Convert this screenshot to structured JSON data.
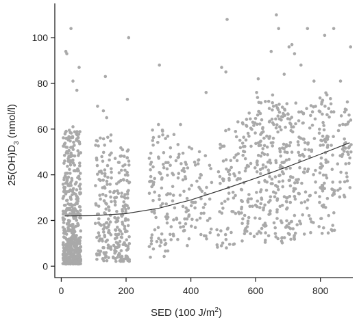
{
  "chart_data": {
    "type": "scatter",
    "title": "",
    "xlabel": {
      "main": "SED (100 J/m",
      "sup": "2",
      "tail": ")"
    },
    "ylabel": {
      "main": "25(OH)D",
      "sub": "3",
      "tail": " (nmol/l)"
    },
    "xlim": [
      -20,
      900
    ],
    "ylim": [
      -5,
      115
    ],
    "x_ticks": [
      0,
      200,
      400,
      600,
      800
    ],
    "y_ticks": [
      0,
      20,
      40,
      60,
      80,
      100
    ],
    "x_tick_labels": [
      "0",
      "200",
      "400",
      "600",
      "800"
    ],
    "y_tick_labels": [
      "0",
      "20",
      "40",
      "60",
      "80",
      "100"
    ],
    "grid": false,
    "legend": "none",
    "colors": {
      "points": "#a9a9a9",
      "fit_line": "#333333",
      "axis": "#222222"
    },
    "fit_curve": {
      "x": [
        10,
        100,
        200,
        300,
        400,
        500,
        600,
        700,
        800,
        890
      ],
      "y": [
        22,
        22.1,
        23,
        25.3,
        29,
        33.6,
        38.5,
        43.6,
        49,
        54
      ]
    },
    "outliers": [
      {
        "x": 14,
        "y": 94
      },
      {
        "x": 17,
        "y": 93
      },
      {
        "x": 30,
        "y": 104
      },
      {
        "x": 36,
        "y": 81
      },
      {
        "x": 48,
        "y": 77
      },
      {
        "x": 55,
        "y": 87
      },
      {
        "x": 136,
        "y": 83
      },
      {
        "x": 208,
        "y": 100
      },
      {
        "x": 204,
        "y": 73
      },
      {
        "x": 303,
        "y": 88
      },
      {
        "x": 447,
        "y": 76
      },
      {
        "x": 495,
        "y": 87
      },
      {
        "x": 508,
        "y": 85
      },
      {
        "x": 512,
        "y": 108
      },
      {
        "x": 603,
        "y": 76
      },
      {
        "x": 608,
        "y": 82
      },
      {
        "x": 648,
        "y": 94
      },
      {
        "x": 664,
        "y": 110
      },
      {
        "x": 671,
        "y": 104
      },
      {
        "x": 688,
        "y": 84
      },
      {
        "x": 703,
        "y": 96
      },
      {
        "x": 712,
        "y": 97
      },
      {
        "x": 720,
        "y": 93
      },
      {
        "x": 740,
        "y": 88
      },
      {
        "x": 760,
        "y": 104
      },
      {
        "x": 813,
        "y": 101
      },
      {
        "x": 841,
        "y": 104
      },
      {
        "x": 893,
        "y": 96
      },
      {
        "x": 862,
        "y": 81
      },
      {
        "x": 780,
        "y": 81
      },
      {
        "x": 820,
        "y": 75
      },
      {
        "x": 690,
        "y": 66
      },
      {
        "x": 655,
        "y": 70
      },
      {
        "x": 580,
        "y": 67
      },
      {
        "x": 36,
        "y": 61
      },
      {
        "x": 112,
        "y": 70
      },
      {
        "x": 130,
        "y": 68
      },
      {
        "x": 140,
        "y": 65
      },
      {
        "x": 300,
        "y": 62
      },
      {
        "x": 368,
        "y": 62
      }
    ],
    "clusters": [
      {
        "x_min": 5,
        "x_max": 60,
        "y_min": 1,
        "y_max": 60,
        "n": 520,
        "bias": 2.2
      },
      {
        "x_min": 105,
        "x_max": 155,
        "y_min": 2,
        "y_max": 58,
        "n": 120,
        "bias": 1.3
      },
      {
        "x_min": 160,
        "x_max": 212,
        "y_min": 2,
        "y_max": 52,
        "n": 150,
        "bias": 1.4
      },
      {
        "x_min": 270,
        "x_max": 330,
        "y_min": 3,
        "y_max": 60,
        "n": 80,
        "bias": 1.1
      },
      {
        "x_min": 335,
        "x_max": 395,
        "y_min": 6,
        "y_max": 58,
        "n": 60,
        "bias": 1.0
      },
      {
        "x_min": 400,
        "x_max": 465,
        "y_min": 10,
        "y_max": 55,
        "n": 45,
        "bias": 1.0
      },
      {
        "x_min": 480,
        "x_max": 545,
        "y_min": 8,
        "y_max": 60,
        "n": 60,
        "bias": 1.0
      },
      {
        "x_min": 545,
        "x_max": 605,
        "y_min": 10,
        "y_max": 66,
        "n": 80,
        "bias": 1.0
      },
      {
        "x_min": 605,
        "x_max": 665,
        "y_min": 10,
        "y_max": 75,
        "n": 110,
        "bias": 1.0
      },
      {
        "x_min": 665,
        "x_max": 725,
        "y_min": 10,
        "y_max": 72,
        "n": 120,
        "bias": 0.95
      },
      {
        "x_min": 725,
        "x_max": 785,
        "y_min": 14,
        "y_max": 72,
        "n": 70,
        "bias": 0.95
      },
      {
        "x_min": 795,
        "x_max": 845,
        "y_min": 14,
        "y_max": 76,
        "n": 90,
        "bias": 0.9
      },
      {
        "x_min": 850,
        "x_max": 895,
        "y_min": 30,
        "y_max": 72,
        "n": 45,
        "bias": 0.9
      }
    ]
  }
}
